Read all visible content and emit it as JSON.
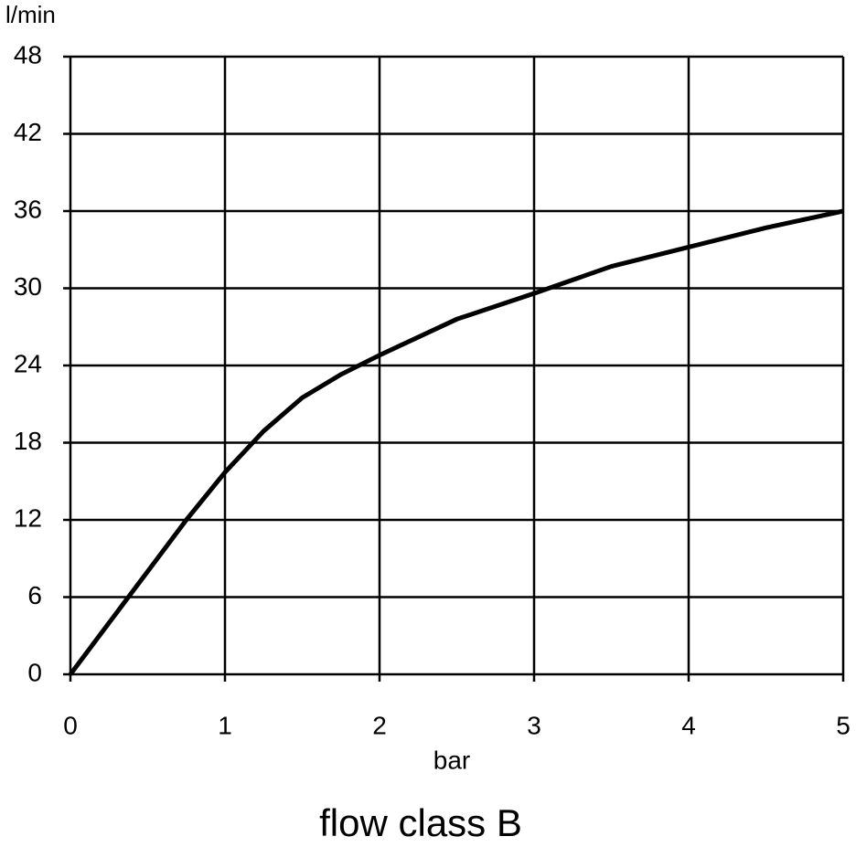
{
  "chart_data": {
    "type": "line",
    "title": "flow class B",
    "x_label": "bar",
    "y_label": "l/min",
    "x": [
      0,
      0.25,
      0.5,
      0.75,
      1,
      1.25,
      1.5,
      1.75,
      2,
      2.5,
      3,
      3.5,
      4,
      4.5,
      5
    ],
    "series": [
      {
        "color": "#000000",
        "values": [
          0,
          4,
          8,
          12,
          15.7,
          18.9,
          21.5,
          23.3,
          24.8,
          27.6,
          29.6,
          31.7,
          33.2,
          34.7,
          36
        ]
      }
    ],
    "xlim": [
      0,
      5
    ],
    "xticks": [
      0,
      1,
      2,
      3,
      4,
      5
    ],
    "ylim": [
      0,
      48
    ],
    "yticks": [
      0,
      6,
      12,
      18,
      24,
      30,
      36,
      42,
      48
    ],
    "grid": true
  }
}
